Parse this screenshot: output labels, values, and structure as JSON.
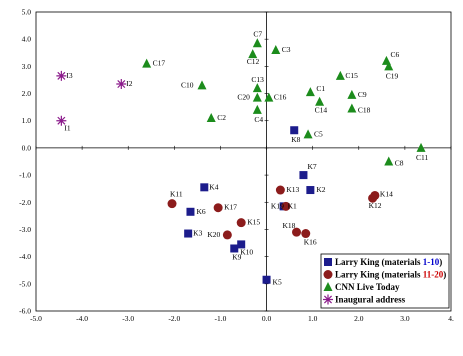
{
  "chart_data": {
    "type": "scatter",
    "title": "",
    "xlabel": "",
    "ylabel": "",
    "xlim": [
      -5.0,
      4.0
    ],
    "ylim": [
      -6.0,
      5.0
    ],
    "grid": "dashed",
    "legend_position": "bottom-right",
    "x_ticks": [
      -5.0,
      -4.0,
      -3.0,
      -2.0,
      -1.0,
      0.0,
      1.0,
      2.0,
      3.0,
      4.0
    ],
    "x_tick_labels": [
      "-5.0",
      "-4.0",
      "-3.0",
      "-2.0",
      "-1.0",
      "0.0",
      "1.0",
      "2.0",
      "3.0",
      "4."
    ],
    "y_ticks": [
      5.0,
      4.0,
      3.0,
      2.0,
      1.0,
      0.0,
      -1.0,
      -2.0,
      -3.0,
      -4.0,
      -5.0,
      -6.0
    ],
    "y_tick_labels": [
      "5.0",
      "4.0",
      "3.0",
      "2.0",
      "1.0",
      "0.0",
      "-1.0",
      "-2.0",
      "-3.0",
      "-4.0",
      "-5.0",
      "-6.0"
    ],
    "series": [
      {
        "name": "Larry King (materials 1-10)",
        "marker": "square",
        "color": "#1c1c8c",
        "points": [
          {
            "label": "K1",
            "x": 0.37,
            "y": -2.15
          },
          {
            "label": "K2",
            "x": 0.95,
            "y": -1.55
          },
          {
            "label": "K3",
            "x": -1.7,
            "y": -3.15
          },
          {
            "label": "K4",
            "x": -1.35,
            "y": -1.45
          },
          {
            "label": "K5",
            "x": 0.0,
            "y": -4.85
          },
          {
            "label": "K6",
            "x": -1.65,
            "y": -2.35
          },
          {
            "label": "K7",
            "x": 0.8,
            "y": -1.0
          },
          {
            "label": "K8",
            "x": 0.6,
            "y": 0.65
          },
          {
            "label": "K9",
            "x": -0.7,
            "y": -3.7
          },
          {
            "label": "K10",
            "x": -0.55,
            "y": -3.55
          }
        ]
      },
      {
        "name": "Larry King (materials 11-20)",
        "marker": "circle",
        "color": "#8c1c1c",
        "points": [
          {
            "label": "K11",
            "x": -2.05,
            "y": -2.05
          },
          {
            "label": "K12",
            "x": 2.3,
            "y": -1.85
          },
          {
            "label": "K13",
            "x": 0.3,
            "y": -1.55
          },
          {
            "label": "K14",
            "x": 2.35,
            "y": -1.75
          },
          {
            "label": "K15",
            "x": -0.55,
            "y": -2.75
          },
          {
            "label": "K16",
            "x": 0.85,
            "y": -3.15
          },
          {
            "label": "K17",
            "x": -1.05,
            "y": -2.2
          },
          {
            "label": "K18",
            "x": 0.65,
            "y": -3.1
          },
          {
            "label": "K19",
            "x": 0.42,
            "y": -2.15
          },
          {
            "label": "K20",
            "x": -0.85,
            "y": -3.2
          }
        ]
      },
      {
        "name": "CNN Live Today",
        "marker": "triangle",
        "color": "#1c8c1c",
        "points": [
          {
            "label": "C1",
            "x": 0.95,
            "y": 2.05
          },
          {
            "label": "C2",
            "x": -1.2,
            "y": 1.1
          },
          {
            "label": "C3",
            "x": 0.2,
            "y": 3.6
          },
          {
            "label": "C4",
            "x": -0.2,
            "y": 1.4
          },
          {
            "label": "C5",
            "x": 0.9,
            "y": 0.5
          },
          {
            "label": "C6",
            "x": 2.6,
            "y": 3.2
          },
          {
            "label": "C7",
            "x": -0.2,
            "y": 3.85
          },
          {
            "label": "C8",
            "x": 2.65,
            "y": -0.5
          },
          {
            "label": "C9",
            "x": 1.85,
            "y": 1.95
          },
          {
            "label": "C10",
            "x": -1.4,
            "y": 2.3
          },
          {
            "label": "C11",
            "x": 3.35,
            "y": 0.0
          },
          {
            "label": "C12",
            "x": -0.3,
            "y": 3.45
          },
          {
            "label": "C13",
            "x": -0.2,
            "y": 2.2
          },
          {
            "label": "C14",
            "x": 1.15,
            "y": 1.7
          },
          {
            "label": "C15",
            "x": 1.6,
            "y": 2.65
          },
          {
            "label": "C16",
            "x": 0.05,
            "y": 1.85
          },
          {
            "label": "C17",
            "x": -2.6,
            "y": 3.1
          },
          {
            "label": "C18",
            "x": 1.85,
            "y": 1.45
          },
          {
            "label": "C19",
            "x": 2.65,
            "y": 3.0
          },
          {
            "label": "C20",
            "x": -0.2,
            "y": 1.85
          }
        ]
      },
      {
        "name": "Inaugural address",
        "marker": "star",
        "color": "#8c1c8c",
        "points": [
          {
            "label": "I1",
            "x": -4.45,
            "y": 1.0
          },
          {
            "label": "I2",
            "x": -3.15,
            "y": 2.35
          },
          {
            "label": "I3",
            "x": -4.45,
            "y": 2.65
          }
        ]
      }
    ],
    "legend": [
      {
        "prefix": "Larry King (materials ",
        "range": "1-10",
        "suffix": ")",
        "range_color": "#0000cc"
      },
      {
        "prefix": "Larry King (materials ",
        "range": "11-20",
        "suffix": ")",
        "range_color": "#cc0000"
      },
      {
        "prefix": "CNN Live Today",
        "range": "",
        "suffix": "",
        "range_color": "#000000"
      },
      {
        "prefix": "Inaugural address",
        "range": "",
        "suffix": "",
        "range_color": "#000000"
      }
    ]
  }
}
